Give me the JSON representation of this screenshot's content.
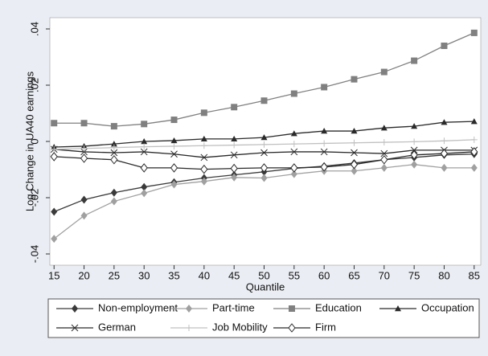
{
  "chart_data": {
    "type": "line",
    "y_label": "Log Change in UA40 earnings",
    "x_label": "Quantile",
    "x": [
      15,
      20,
      25,
      30,
      35,
      40,
      45,
      50,
      55,
      60,
      65,
      70,
      75,
      80,
      85
    ],
    "xlim": [
      14.3,
      86.1
    ],
    "xticks": [
      15,
      20,
      25,
      30,
      35,
      40,
      45,
      50,
      55,
      60,
      65,
      70,
      75,
      80,
      85
    ],
    "ylim": [
      -0.044,
      0.044
    ],
    "yticks": [
      {
        "value": -0.04,
        "label": "-.04"
      },
      {
        "value": -0.02,
        "label": "-.02"
      },
      0,
      {
        "value": 0.02,
        "label": ".02"
      },
      {
        "value": 0.04,
        "label": ".04"
      }
    ],
    "series": [
      {
        "name": "Non-employment",
        "color": "#3a3a3a",
        "marker": "diamond",
        "values": [
          -0.025,
          -0.0207,
          -0.0182,
          -0.0162,
          -0.0145,
          -0.013,
          -0.0119,
          -0.0108,
          -0.0096,
          -0.0088,
          -0.0077,
          -0.0065,
          -0.0057,
          -0.0048,
          -0.0045
        ]
      },
      {
        "name": "Part-time",
        "color": "#a0a0a0",
        "marker": "diamond",
        "values": [
          -0.0346,
          -0.0264,
          -0.0213,
          -0.0184,
          -0.0153,
          -0.0142,
          -0.0128,
          -0.013,
          -0.0116,
          -0.0105,
          -0.0105,
          -0.0094,
          -0.0082,
          -0.0094,
          -0.0094
        ]
      },
      {
        "name": "Education",
        "color": "#808080",
        "marker": "square",
        "values": [
          0.0065,
          0.0065,
          0.0054,
          0.0062,
          0.0077,
          0.0102,
          0.0122,
          0.0145,
          0.017,
          0.0193,
          0.0221,
          0.0247,
          0.0287,
          0.034,
          0.0386
        ]
      },
      {
        "name": "Occupation",
        "color": "#2a2a2a",
        "marker": "triangle",
        "values": [
          -0.002,
          -0.0017,
          -0.0009,
          0,
          0.0003,
          0.0009,
          0.0009,
          0.0014,
          0.0028,
          0.0037,
          0.0037,
          0.0048,
          0.0054,
          0.0068,
          0.0071
        ]
      },
      {
        "name": "German",
        "color": "#2a2a2a",
        "marker": "x",
        "values": [
          -0.0028,
          -0.0037,
          -0.004,
          -0.0037,
          -0.0045,
          -0.0057,
          -0.0048,
          -0.004,
          -0.0037,
          -0.0037,
          -0.004,
          -0.0043,
          -0.0031,
          -0.0031,
          -0.0031
        ]
      },
      {
        "name": "Job Mobility",
        "color": "#c0c0c0",
        "marker": "plus",
        "values": [
          -0.0028,
          -0.0025,
          -0.0022,
          -0.0019,
          -0.0017,
          -0.0015,
          -0.0013,
          -0.0011,
          -0.0009,
          -0.0007,
          -0.0005,
          -0.0003,
          -0.0001,
          0.0002,
          0.0006
        ]
      },
      {
        "name": "Firm",
        "color": "#2a2a2a",
        "marker": "hollow-diamond",
        "values": [
          -0.0054,
          -0.006,
          -0.0065,
          -0.0094,
          -0.0094,
          -0.0099,
          -0.0096,
          -0.0094,
          -0.0094,
          -0.0091,
          -0.0082,
          -0.0065,
          -0.0048,
          -0.0043,
          -0.0037
        ]
      }
    ]
  }
}
